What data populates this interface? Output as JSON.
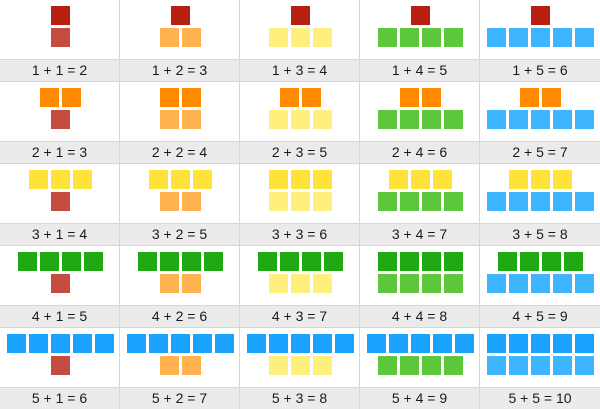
{
  "colors": {
    "1": "#b71f10",
    "2": "#ff8a00",
    "3": "#ffe33b",
    "4": "#20a912",
    "5": "#1aa2ff"
  },
  "bottom_colors": {
    "1": "#c64b40",
    "2": "#ffb24f",
    "3": "#fff07e",
    "4": "#5dc83c",
    "5": "#3db5ff"
  },
  "rows": [
    {
      "a": 1,
      "cells": [
        {
          "b": 1,
          "equation": "1 + 1 = 2"
        },
        {
          "b": 2,
          "equation": "1 + 2 = 3"
        },
        {
          "b": 3,
          "equation": "1 + 3 = 4"
        },
        {
          "b": 4,
          "equation": "1 + 4 = 5"
        },
        {
          "b": 5,
          "equation": "1 + 5 = 6"
        }
      ]
    },
    {
      "a": 2,
      "cells": [
        {
          "b": 1,
          "equation": "2 + 1 = 3"
        },
        {
          "b": 2,
          "equation": "2 + 2 = 4"
        },
        {
          "b": 3,
          "equation": "2 + 3 = 5"
        },
        {
          "b": 4,
          "equation": "2 + 4 = 6"
        },
        {
          "b": 5,
          "equation": "2 + 5 = 7"
        }
      ]
    },
    {
      "a": 3,
      "cells": [
        {
          "b": 1,
          "equation": "3 + 1 = 4"
        },
        {
          "b": 2,
          "equation": "3 + 2 = 5"
        },
        {
          "b": 3,
          "equation": "3 + 3 = 6"
        },
        {
          "b": 4,
          "equation": "3 + 4 = 7"
        },
        {
          "b": 5,
          "equation": "3 + 5 = 8"
        }
      ]
    },
    {
      "a": 4,
      "cells": [
        {
          "b": 1,
          "equation": "4 + 1 = 5"
        },
        {
          "b": 2,
          "equation": "4 + 2 = 6"
        },
        {
          "b": 3,
          "equation": "4 + 3 = 7"
        },
        {
          "b": 4,
          "equation": "4 + 4 = 8"
        },
        {
          "b": 5,
          "equation": "4 + 5 = 9"
        }
      ]
    },
    {
      "a": 5,
      "cells": [
        {
          "b": 1,
          "equation": "5 + 1 = 6"
        },
        {
          "b": 2,
          "equation": "5 + 2 = 7"
        },
        {
          "b": 3,
          "equation": "5 + 3 = 8"
        },
        {
          "b": 4,
          "equation": "5 + 4 = 9"
        },
        {
          "b": 5,
          "equation": "5 + 5 = 10"
        }
      ]
    }
  ]
}
